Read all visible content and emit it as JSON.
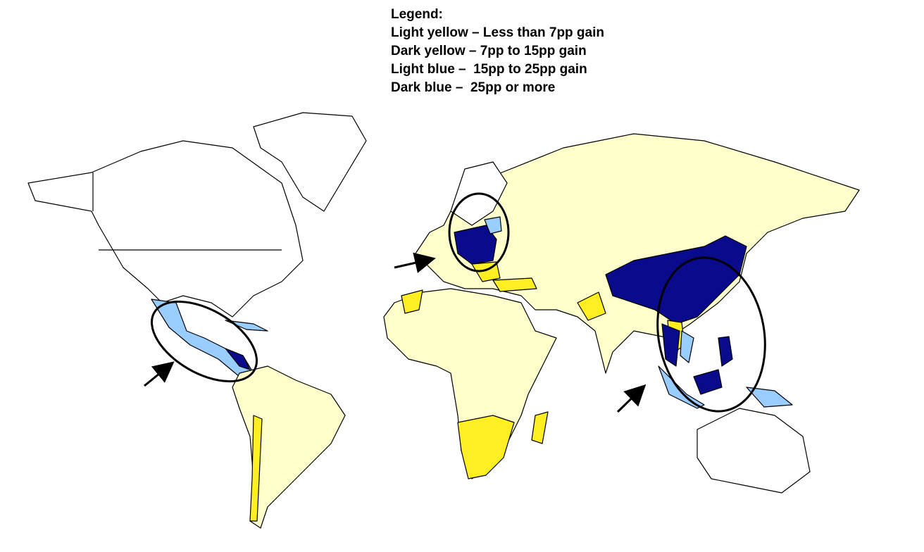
{
  "legend": {
    "title": "Legend:",
    "items": [
      "Light yellow – Less than 7pp gain",
      "Dark yellow – 7pp to 15pp gain",
      "Light blue –  15pp to 25pp gain",
      "Dark blue –  25pp or more"
    ]
  }
}
